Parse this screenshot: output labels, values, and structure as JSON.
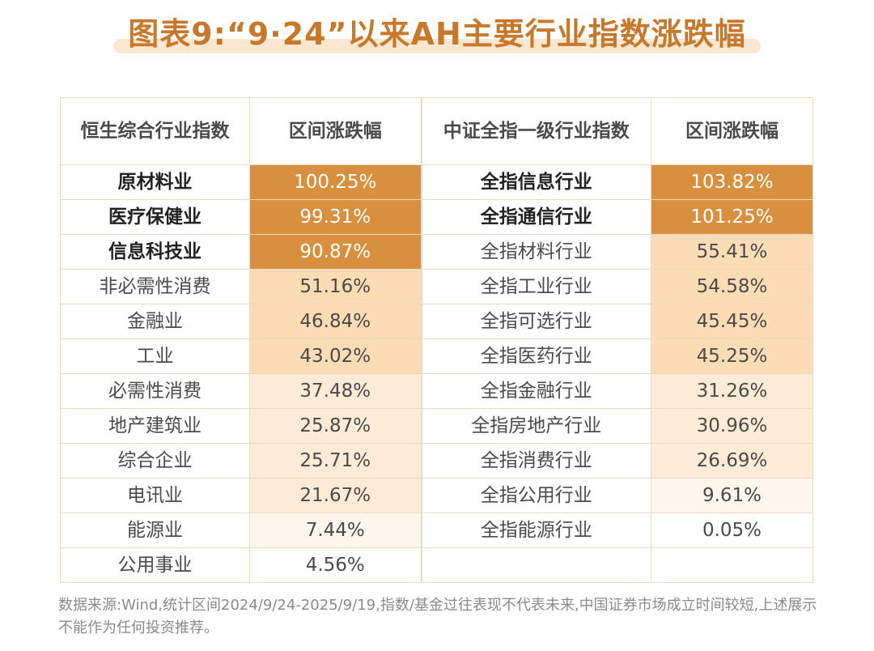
{
  "title": "图表9:“9·24”以来AH主要行业指数涨跌幅",
  "headers": [
    "恒生综合行业指数",
    "区间涨跌幅",
    "中证全指一级行业指数",
    "区间涨跌幅"
  ],
  "rows": [
    {
      "hk": "原材料业",
      "hk_val": "100.25%",
      "cs": "全指信息行业",
      "cs_val": "103.82%"
    },
    {
      "hk": "医疗保健业",
      "hk_val": "99.31%",
      "cs": "全指通信行业",
      "cs_val": "101.25%"
    },
    {
      "hk": "信息科技业",
      "hk_val": "90.87%",
      "cs": "全指材料行业",
      "cs_val": "55.41%"
    },
    {
      "hk": "非必需性消费",
      "hk_val": "51.16%",
      "cs": "全指工业行业",
      "cs_val": "54.58%"
    },
    {
      "hk": "金融业",
      "hk_val": "46.84%",
      "cs": "全指可选行业",
      "cs_val": "45.45%"
    },
    {
      "hk": "工业",
      "hk_val": "43.02%",
      "cs": "全指医药行业",
      "cs_val": "45.25%"
    },
    {
      "hk": "必需性消费",
      "hk_val": "37.48%",
      "cs": "全指金融行业",
      "cs_val": "31.26%"
    },
    {
      "hk": "地产建筑业",
      "hk_val": "25.87%",
      "cs": "全指房地产行业",
      "cs_val": "30.96%"
    },
    {
      "hk": "综合企业",
      "hk_val": "25.71%",
      "cs": "全指消费行业",
      "cs_val": "26.69%"
    },
    {
      "hk": "电讯业",
      "hk_val": "21.67%",
      "cs": "全指公用行业",
      "cs_val": "9.61%"
    },
    {
      "hk": "能源业",
      "hk_val": "7.44%",
      "cs": "全指能源行业",
      "cs_val": "0.05%"
    },
    {
      "hk": "公用事业",
      "hk_val": "4.56%",
      "cs": "",
      "cs_val": ""
    }
  ],
  "source": "数据来源:Wind,统计区间2024/9/24-2025/9/19,指数/基金过往表现不代表未来,中国证券市场成立时间较短,上述展示不能作为任何投资推荐。"
}
